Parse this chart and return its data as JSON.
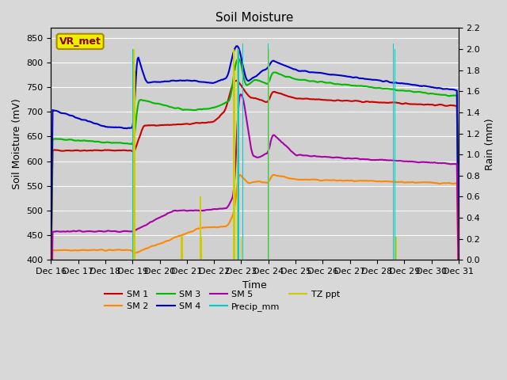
{
  "title": "Soil Moisture",
  "xlabel": "Time",
  "ylabel_left": "Soil Moisture (mV)",
  "ylabel_right": "Rain (mm)",
  "ylim_left": [
    400,
    870
  ],
  "ylim_right": [
    0.0,
    2.2
  ],
  "yticks_left": [
    400,
    450,
    500,
    550,
    600,
    650,
    700,
    750,
    800,
    850
  ],
  "yticks_right": [
    0.0,
    0.2,
    0.4,
    0.6,
    0.8,
    1.0,
    1.2,
    1.4,
    1.6,
    1.8,
    2.0,
    2.2
  ],
  "fig_bg": "#d8d8d8",
  "plot_bg": "#d0d0d0",
  "annotation_box_color": "#eeee00",
  "annotation_text": "VR_met",
  "annotation_text_color": "#880000",
  "colors": {
    "SM1": "#cc0000",
    "SM2": "#ff8800",
    "SM3": "#00bb00",
    "SM4": "#0000cc",
    "SM5": "#aa00aa",
    "Precip": "#00cccc",
    "TZ_ppt": "#cccc00"
  },
  "x_tick_labels": [
    "Dec 16",
    "Dec 17",
    "Dec 18",
    "Dec 19",
    "Dec 20",
    "Dec 21",
    "Dec 22",
    "Dec 23",
    "Dec 24",
    "Dec 25",
    "Dec 26",
    "Dec 27",
    "Dec 28",
    "Dec 29",
    "Dec 30",
    "Dec 31"
  ],
  "num_points": 500
}
